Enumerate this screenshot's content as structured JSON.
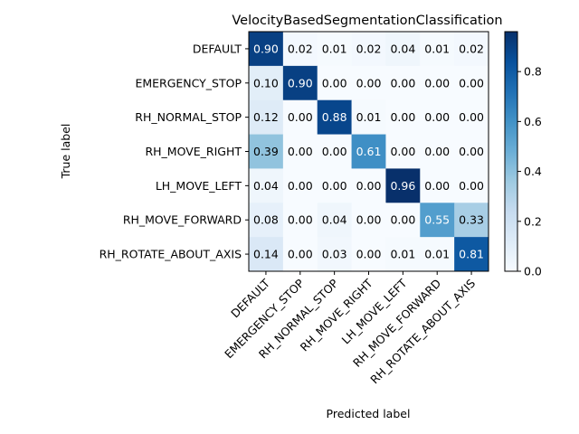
{
  "chart_data": {
    "type": "heatmap",
    "title": "VelocityBasedSegmentationClassification",
    "xlabel": "Predicted label",
    "ylabel": "True label",
    "x_categories": [
      "DEFAULT",
      "EMERGENCY_STOP",
      "RH_NORMAL_STOP",
      "RH_MOVE_RIGHT",
      "LH_MOVE_LEFT",
      "RH_MOVE_FORWARD",
      "RH_ROTATE_ABOUT_AXIS"
    ],
    "y_categories": [
      "DEFAULT",
      "EMERGENCY_STOP",
      "RH_NORMAL_STOP",
      "RH_MOVE_RIGHT",
      "LH_MOVE_LEFT",
      "RH_MOVE_FORWARD",
      "RH_ROTATE_ABOUT_AXIS"
    ],
    "matrix": [
      [
        0.9,
        0.02,
        0.01,
        0.02,
        0.04,
        0.01,
        0.02
      ],
      [
        0.1,
        0.9,
        0.0,
        0.0,
        0.0,
        0.0,
        0.0
      ],
      [
        0.12,
        0.0,
        0.88,
        0.01,
        0.0,
        0.0,
        0.0
      ],
      [
        0.39,
        0.0,
        0.0,
        0.61,
        0.0,
        0.0,
        0.0
      ],
      [
        0.04,
        0.0,
        0.0,
        0.0,
        0.96,
        0.0,
        0.0
      ],
      [
        0.08,
        0.0,
        0.04,
        0.0,
        0.0,
        0.55,
        0.33
      ],
      [
        0.14,
        0.0,
        0.03,
        0.0,
        0.01,
        0.01,
        0.81
      ]
    ],
    "colormap": "Blues",
    "colorbar": {
      "range": [
        0.0,
        0.96
      ],
      "ticks": [
        0.0,
        0.2,
        0.4,
        0.6,
        0.8
      ],
      "tick_labels": [
        "0.0",
        "0.2",
        "0.4",
        "0.6",
        "0.8"
      ]
    },
    "value_format": "2 decimals",
    "grid": false
  }
}
